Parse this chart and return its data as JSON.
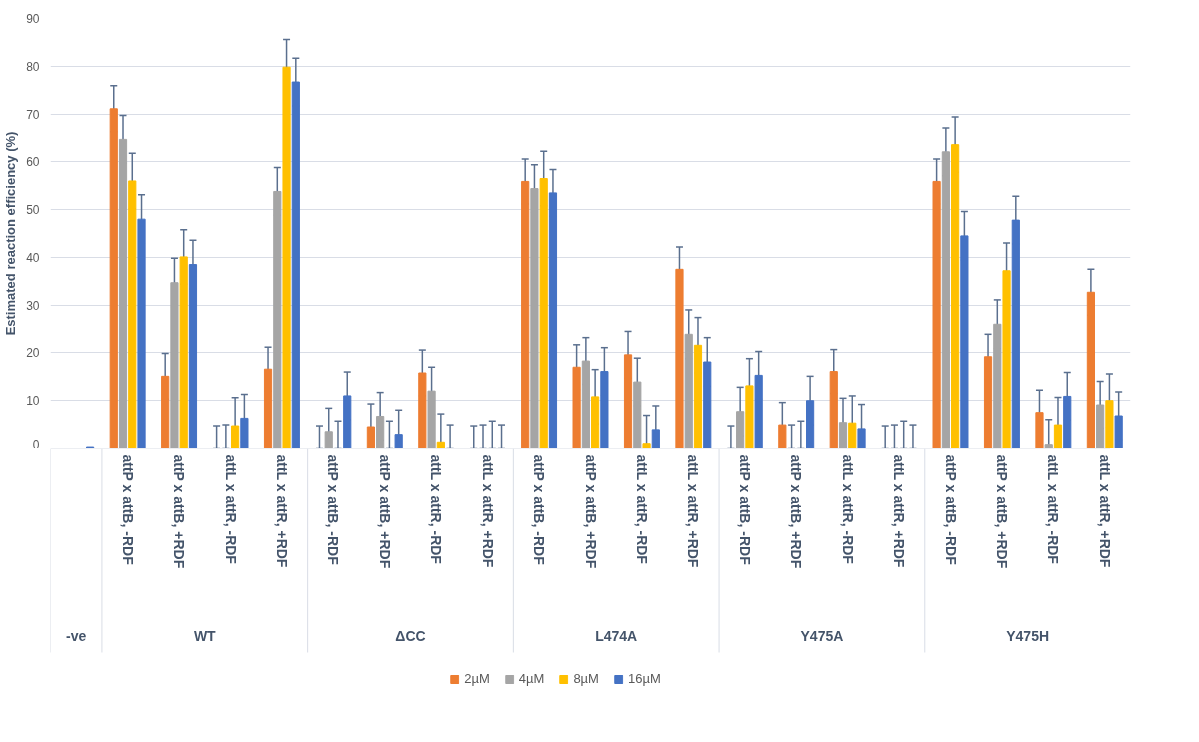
{
  "chart_data": {
    "type": "bar",
    "ylabel": "Estimated reaction efficiency (%)",
    "categories": [
      null,
      "attP x attB, -RDF",
      "attP x attB, +RDF",
      "attL x attR, -RDF",
      "attL x attR, +RDF",
      "attP x attB, -RDF",
      "attP x attB, +RDF",
      "attL x attR, -RDF",
      "attL x attR, +RDF",
      "attP x attB, -RDF",
      "attP x attB, +RDF",
      "attL x attR, -RDF",
      "attL x attR, +RDF",
      "attP x attB, -RDF",
      "attP x attB, +RDF",
      "attL x attR, -RDF",
      "attL x attR, +RDF",
      "attP x attB, -RDF",
      "attP x attB, +RDF",
      "attL x attR, -RDF",
      "attL x attR, +RDF"
    ],
    "annotations": [
      "-ve",
      "WT",
      "ΔCC",
      "L474A",
      "Y475A",
      "Y475H"
    ],
    "series": [
      {
        "name": "2µM",
        "color": "#ed7d31",
        "values": [
          null,
          71.1,
          15.1,
          0,
          16.6,
          0,
          4.5,
          15.8,
          0,
          55.9,
          17.0,
          19.6,
          37.5,
          0,
          4.9,
          16.1,
          0,
          55.9,
          19.2,
          7.5,
          32.7
        ],
        "errors": [
          null,
          4.8,
          4.8,
          [
            0,
            4.7
          ],
          4.6,
          [
            0,
            4.7
          ],
          [
            0,
            9.3
          ],
          4.8,
          [
            0,
            4.7
          ],
          4.7,
          4.7,
          4.9,
          4.7,
          [
            0,
            4.7
          ],
          [
            0,
            9.6
          ],
          4.6,
          [
            0,
            4.7
          ],
          4.7,
          4.7,
          4.7,
          4.8
        ]
      },
      {
        "name": "4µM",
        "color": "#a5a5a5",
        "values": [
          null,
          64.7,
          34.7,
          0,
          53.8,
          3.5,
          6.7,
          12.0,
          0,
          54.4,
          18.3,
          13.9,
          23.9,
          7.7,
          0,
          5.4,
          0,
          62.1,
          26.0,
          0.8,
          9.1
        ],
        "errors": [
          null,
          5.0,
          5.1,
          [
            0,
            4.9
          ],
          5.0,
          [
            0,
            8.4
          ],
          5.0,
          5.0,
          [
            0,
            4.9
          ],
          5.0,
          4.9,
          5.0,
          5.1,
          5.1,
          [
            0,
            4.9
          ],
          5.1,
          [
            0,
            4.9
          ],
          5.0,
          5.1,
          [
            0,
            6.0
          ],
          4.9
        ]
      },
      {
        "name": "8µM",
        "color": "#ffc000",
        "values": [
          null,
          56.0,
          40.1,
          4.7,
          79.8,
          0,
          0,
          1.3,
          0,
          56.5,
          10.8,
          1.0,
          21.6,
          13.1,
          0,
          5.3,
          0,
          63.6,
          37.2,
          4.9,
          10.0
        ],
        "errors": [
          null,
          5.8,
          5.7,
          [
            0,
            10.6
          ],
          5.8,
          [
            0,
            5.7
          ],
          [
            0,
            5.7
          ],
          [
            0,
            7.2
          ],
          [
            0,
            5.7
          ],
          5.7,
          5.7,
          [
            0,
            6.9
          ],
          5.8,
          5.7,
          [
            0,
            5.7
          ],
          [
            0,
            11.0
          ],
          [
            0,
            5.7
          ],
          5.8,
          5.8,
          [
            0,
            10.7
          ],
          5.6
        ]
      },
      {
        "name": "16µM",
        "color": "#4472c4",
        "values": [
          0.3,
          48.0,
          38.5,
          6.3,
          76.7,
          11.0,
          2.9,
          0,
          0,
          53.5,
          16.1,
          3.9,
          18.1,
          15.3,
          10.0,
          4.1,
          0,
          44.5,
          47.8,
          10.9,
          6.8
        ],
        "errors": [
          null,
          5.1,
          5.1,
          5.0,
          5.0,
          5.0,
          [
            0,
            8.0
          ],
          [
            0,
            4.9
          ],
          [
            0,
            4.9
          ],
          4.9,
          5.0,
          [
            0,
            8.9
          ],
          5.1,
          5.0,
          5.1,
          [
            0,
            9.2
          ],
          [
            0,
            4.9
          ],
          5.1,
          5.0,
          5.0,
          5.0
        ]
      }
    ],
    "ylim": [
      0,
      90
    ],
    "yticks": [
      0,
      10,
      20,
      30,
      40,
      50,
      60,
      70,
      80,
      90
    ],
    "grid": "y",
    "legend": "bottom"
  }
}
